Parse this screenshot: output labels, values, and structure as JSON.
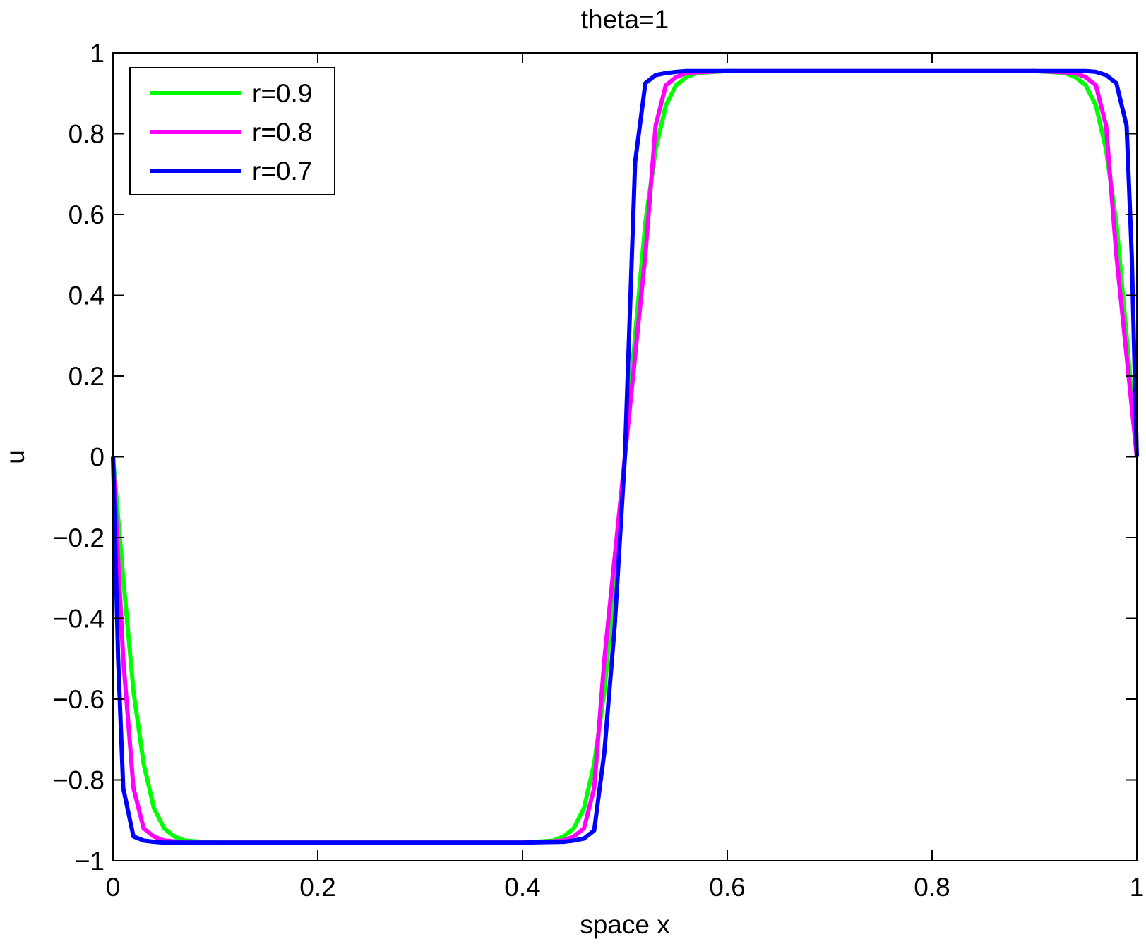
{
  "chart_data": {
    "type": "line",
    "title": "theta=1",
    "xlabel": "space x",
    "ylabel": "u",
    "xlim": [
      0,
      1
    ],
    "ylim": [
      -1,
      1
    ],
    "xticks": [
      0,
      0.2,
      0.4,
      0.6,
      0.8,
      1
    ],
    "xtick_labels": [
      "0",
      "0.2",
      "0.4",
      "0.6",
      "0.8",
      "1"
    ],
    "yticks": [
      -1,
      -0.8,
      -0.6,
      -0.4,
      -0.2,
      0,
      0.2,
      0.4,
      0.6,
      0.8,
      1
    ],
    "ytick_labels": [
      "−1",
      "−0.8",
      "−0.6",
      "−0.4",
      "−0.2",
      "0",
      "0.2",
      "0.4",
      "0.6",
      "0.8",
      "1"
    ],
    "grid": false,
    "legend_position": "top-left",
    "series": [
      {
        "name": "r=0.9",
        "color": "#00ff00",
        "x": [
          0,
          0.01,
          0.02,
          0.03,
          0.04,
          0.05,
          0.06,
          0.07,
          0.08,
          0.1,
          0.2,
          0.3,
          0.4,
          0.42,
          0.43,
          0.44,
          0.45,
          0.46,
          0.47,
          0.48,
          0.49,
          0.5,
          0.51,
          0.52,
          0.53,
          0.54,
          0.55,
          0.56,
          0.57,
          0.58,
          0.6,
          0.7,
          0.8,
          0.9,
          0.92,
          0.93,
          0.94,
          0.95,
          0.96,
          0.97,
          0.98,
          0.99,
          1
        ],
        "y": [
          0,
          -0.3,
          -0.58,
          -0.76,
          -0.87,
          -0.92,
          -0.94,
          -0.95,
          -0.952,
          -0.955,
          -0.955,
          -0.955,
          -0.955,
          -0.952,
          -0.95,
          -0.94,
          -0.92,
          -0.87,
          -0.76,
          -0.58,
          -0.3,
          0,
          0.3,
          0.58,
          0.76,
          0.87,
          0.92,
          0.94,
          0.95,
          0.952,
          0.955,
          0.955,
          0.955,
          0.955,
          0.952,
          0.95,
          0.94,
          0.92,
          0.87,
          0.76,
          0.58,
          0.3,
          0
        ]
      },
      {
        "name": "r=0.8",
        "color": "#ff00ff",
        "x": [
          0,
          0.01,
          0.02,
          0.03,
          0.04,
          0.05,
          0.06,
          0.07,
          0.1,
          0.2,
          0.3,
          0.4,
          0.43,
          0.44,
          0.45,
          0.46,
          0.47,
          0.48,
          0.49,
          0.5,
          0.51,
          0.52,
          0.53,
          0.54,
          0.55,
          0.56,
          0.57,
          0.6,
          0.7,
          0.8,
          0.9,
          0.93,
          0.94,
          0.95,
          0.96,
          0.97,
          0.98,
          0.99,
          1
        ],
        "y": [
          0,
          -0.5,
          -0.82,
          -0.92,
          -0.94,
          -0.95,
          -0.952,
          -0.955,
          -0.955,
          -0.955,
          -0.955,
          -0.955,
          -0.952,
          -0.95,
          -0.94,
          -0.92,
          -0.82,
          -0.5,
          -0.25,
          0,
          0.25,
          0.5,
          0.82,
          0.92,
          0.94,
          0.95,
          0.952,
          0.955,
          0.955,
          0.955,
          0.955,
          0.952,
          0.95,
          0.94,
          0.92,
          0.82,
          0.5,
          0.25,
          0
        ]
      },
      {
        "name": "r=0.7",
        "color": "#0000ff",
        "x": [
          0,
          0.005,
          0.01,
          0.02,
          0.03,
          0.04,
          0.05,
          0.1,
          0.2,
          0.3,
          0.4,
          0.44,
          0.45,
          0.46,
          0.47,
          0.48,
          0.49,
          0.5,
          0.51,
          0.52,
          0.53,
          0.54,
          0.55,
          0.56,
          0.6,
          0.7,
          0.8,
          0.9,
          0.95,
          0.96,
          0.97,
          0.98,
          0.99,
          0.995,
          1
        ],
        "y": [
          0,
          -0.5,
          -0.82,
          -0.94,
          -0.95,
          -0.953,
          -0.955,
          -0.955,
          -0.955,
          -0.955,
          -0.955,
          -0.953,
          -0.95,
          -0.945,
          -0.925,
          -0.73,
          -0.42,
          0,
          0.73,
          0.925,
          0.945,
          0.95,
          0.953,
          0.955,
          0.955,
          0.955,
          0.955,
          0.955,
          0.955,
          0.953,
          0.945,
          0.925,
          0.82,
          0.5,
          0
        ]
      }
    ]
  }
}
